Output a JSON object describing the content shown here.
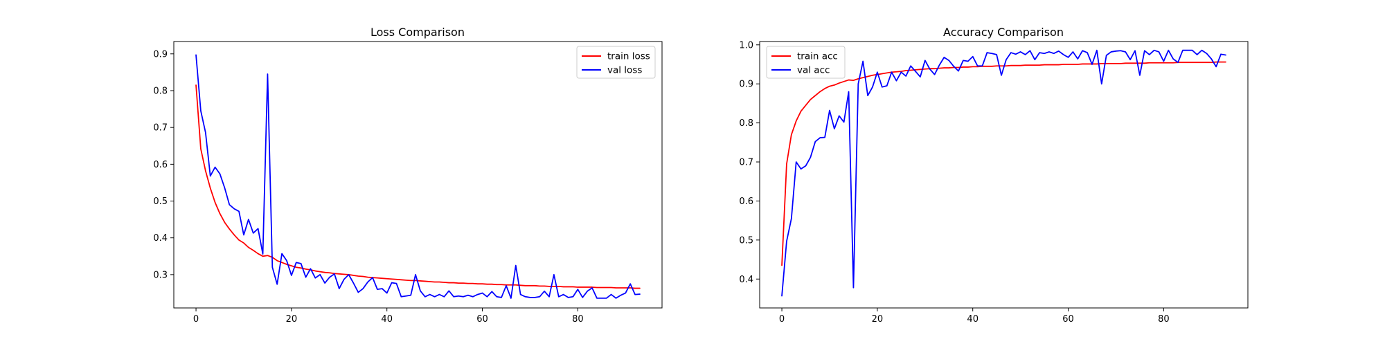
{
  "chart_data": [
    {
      "type": "line",
      "title": "Loss Comparison",
      "xlabel": "",
      "ylabel": "",
      "xlim": [
        -4.65,
        97.65
      ],
      "ylim": [
        0.2095,
        0.9335
      ],
      "xticks": [
        0,
        20,
        40,
        60,
        80
      ],
      "yticks": [
        0.3,
        0.4,
        0.5,
        0.6,
        0.7,
        0.8,
        0.9
      ],
      "grid": false,
      "legend_position": "top-right",
      "x": [
        0,
        1,
        2,
        3,
        4,
        5,
        6,
        7,
        8,
        9,
        10,
        11,
        12,
        13,
        14,
        15,
        16,
        17,
        18,
        19,
        20,
        21,
        22,
        23,
        24,
        25,
        26,
        27,
        28,
        29,
        30,
        31,
        32,
        33,
        34,
        35,
        36,
        37,
        38,
        39,
        40,
        41,
        42,
        43,
        44,
        45,
        46,
        47,
        48,
        49,
        50,
        51,
        52,
        53,
        54,
        55,
        56,
        57,
        58,
        59,
        60,
        61,
        62,
        63,
        64,
        65,
        66,
        67,
        68,
        69,
        70,
        71,
        72,
        73,
        74,
        75,
        76,
        77,
        78,
        79,
        80,
        81,
        82,
        83,
        84,
        85,
        86,
        87,
        88,
        89,
        90,
        91,
        92,
        93
      ],
      "series": [
        {
          "name": "train loss",
          "color": "#ff0000",
          "values": [
            0.815,
            0.642,
            0.582,
            0.535,
            0.496,
            0.466,
            0.442,
            0.424,
            0.408,
            0.394,
            0.386,
            0.374,
            0.366,
            0.357,
            0.35,
            0.352,
            0.347,
            0.338,
            0.333,
            0.328,
            0.324,
            0.32,
            0.318,
            0.315,
            0.313,
            0.31,
            0.308,
            0.306,
            0.305,
            0.303,
            0.302,
            0.301,
            0.3,
            0.298,
            0.296,
            0.295,
            0.293,
            0.292,
            0.291,
            0.29,
            0.289,
            0.288,
            0.287,
            0.286,
            0.285,
            0.284,
            0.284,
            0.283,
            0.282,
            0.281,
            0.28,
            0.28,
            0.279,
            0.278,
            0.278,
            0.277,
            0.277,
            0.276,
            0.276,
            0.275,
            0.275,
            0.274,
            0.274,
            0.273,
            0.273,
            0.272,
            0.272,
            0.272,
            0.271,
            0.27,
            0.27,
            0.27,
            0.269,
            0.269,
            0.268,
            0.268,
            0.268,
            0.267,
            0.267,
            0.267,
            0.266,
            0.266,
            0.266,
            0.266,
            0.265,
            0.265,
            0.265,
            0.265,
            0.264,
            0.264,
            0.264,
            0.264,
            0.263,
            0.263
          ]
        },
        {
          "name": "val loss",
          "color": "#0000ff",
          "values": [
            0.897,
            0.745,
            0.686,
            0.568,
            0.592,
            0.574,
            0.536,
            0.49,
            0.479,
            0.472,
            0.408,
            0.45,
            0.413,
            0.425,
            0.356,
            0.845,
            0.32,
            0.274,
            0.357,
            0.338,
            0.298,
            0.333,
            0.33,
            0.293,
            0.316,
            0.291,
            0.3,
            0.277,
            0.293,
            0.302,
            0.262,
            0.287,
            0.3,
            0.277,
            0.252,
            0.262,
            0.28,
            0.292,
            0.26,
            0.262,
            0.25,
            0.278,
            0.276,
            0.24,
            0.242,
            0.244,
            0.3,
            0.256,
            0.24,
            0.246,
            0.24,
            0.246,
            0.24,
            0.256,
            0.24,
            0.242,
            0.24,
            0.244,
            0.24,
            0.246,
            0.25,
            0.24,
            0.254,
            0.24,
            0.238,
            0.27,
            0.236,
            0.325,
            0.246,
            0.24,
            0.238,
            0.238,
            0.24,
            0.255,
            0.24,
            0.3,
            0.24,
            0.246,
            0.238,
            0.24,
            0.26,
            0.238,
            0.255,
            0.264,
            0.236,
            0.236,
            0.236,
            0.246,
            0.236,
            0.244,
            0.25,
            0.275,
            0.246,
            0.247
          ]
        }
      ]
    },
    {
      "type": "line",
      "title": "Accuracy Comparison",
      "xlabel": "",
      "ylabel": "",
      "xlim": [
        -4.65,
        97.65
      ],
      "ylim": [
        0.326,
        1.0085
      ],
      "xticks": [
        0,
        20,
        40,
        60,
        80
      ],
      "yticks": [
        0.4,
        0.5,
        0.6,
        0.7,
        0.8,
        0.9,
        1.0
      ],
      "grid": false,
      "legend_position": "top-left",
      "x": [
        0,
        1,
        2,
        3,
        4,
        5,
        6,
        7,
        8,
        9,
        10,
        11,
        12,
        13,
        14,
        15,
        16,
        17,
        18,
        19,
        20,
        21,
        22,
        23,
        24,
        25,
        26,
        27,
        28,
        29,
        30,
        31,
        32,
        33,
        34,
        35,
        36,
        37,
        38,
        39,
        40,
        41,
        42,
        43,
        44,
        45,
        46,
        47,
        48,
        49,
        50,
        51,
        52,
        53,
        54,
        55,
        56,
        57,
        58,
        59,
        60,
        61,
        62,
        63,
        64,
        65,
        66,
        67,
        68,
        69,
        70,
        71,
        72,
        73,
        74,
        75,
        76,
        77,
        78,
        79,
        80,
        81,
        82,
        83,
        84,
        85,
        86,
        87,
        88,
        89,
        90,
        91,
        92,
        93
      ],
      "series": [
        {
          "name": "train acc",
          "color": "#ff0000",
          "values": [
            0.435,
            0.695,
            0.77,
            0.805,
            0.83,
            0.845,
            0.86,
            0.87,
            0.88,
            0.888,
            0.894,
            0.897,
            0.902,
            0.906,
            0.91,
            0.909,
            0.913,
            0.916,
            0.919,
            0.922,
            0.924,
            0.926,
            0.928,
            0.93,
            0.931,
            0.932,
            0.934,
            0.935,
            0.936,
            0.937,
            0.938,
            0.939,
            0.939,
            0.94,
            0.941,
            0.941,
            0.942,
            0.942,
            0.943,
            0.943,
            0.944,
            0.944,
            0.945,
            0.945,
            0.945,
            0.946,
            0.946,
            0.946,
            0.947,
            0.947,
            0.947,
            0.948,
            0.948,
            0.948,
            0.948,
            0.949,
            0.949,
            0.949,
            0.949,
            0.95,
            0.95,
            0.95,
            0.95,
            0.951,
            0.951,
            0.951,
            0.951,
            0.952,
            0.952,
            0.952,
            0.952,
            0.952,
            0.953,
            0.953,
            0.953,
            0.953,
            0.953,
            0.954,
            0.954,
            0.954,
            0.954,
            0.954,
            0.954,
            0.955,
            0.955,
            0.955,
            0.955,
            0.955,
            0.955,
            0.955,
            0.955,
            0.956,
            0.956,
            0.956
          ]
        },
        {
          "name": "val acc",
          "color": "#0000ff",
          "values": [
            0.357,
            0.497,
            0.555,
            0.7,
            0.682,
            0.69,
            0.712,
            0.752,
            0.762,
            0.763,
            0.832,
            0.785,
            0.818,
            0.802,
            0.88,
            0.378,
            0.9,
            0.958,
            0.87,
            0.892,
            0.93,
            0.892,
            0.895,
            0.93,
            0.908,
            0.93,
            0.92,
            0.946,
            0.932,
            0.918,
            0.96,
            0.938,
            0.924,
            0.948,
            0.968,
            0.96,
            0.945,
            0.933,
            0.96,
            0.958,
            0.97,
            0.946,
            0.946,
            0.98,
            0.978,
            0.975,
            0.922,
            0.962,
            0.98,
            0.976,
            0.982,
            0.975,
            0.985,
            0.962,
            0.98,
            0.978,
            0.982,
            0.978,
            0.984,
            0.975,
            0.968,
            0.982,
            0.964,
            0.985,
            0.98,
            0.95,
            0.986,
            0.9,
            0.973,
            0.982,
            0.984,
            0.985,
            0.982,
            0.962,
            0.985,
            0.922,
            0.985,
            0.975,
            0.986,
            0.982,
            0.958,
            0.986,
            0.964,
            0.955,
            0.986,
            0.986,
            0.986,
            0.975,
            0.986,
            0.978,
            0.964,
            0.944,
            0.976,
            0.974
          ]
        }
      ]
    }
  ]
}
